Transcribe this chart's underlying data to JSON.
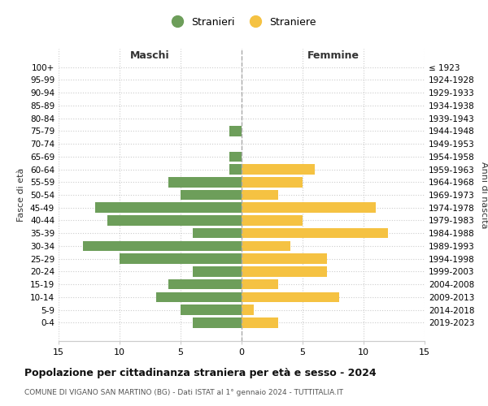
{
  "age_groups": [
    "100+",
    "95-99",
    "90-94",
    "85-89",
    "80-84",
    "75-79",
    "70-74",
    "65-69",
    "60-64",
    "55-59",
    "50-54",
    "45-49",
    "40-44",
    "35-39",
    "30-34",
    "25-29",
    "20-24",
    "15-19",
    "10-14",
    "5-9",
    "0-4"
  ],
  "birth_years": [
    "≤ 1923",
    "1924-1928",
    "1929-1933",
    "1934-1938",
    "1939-1943",
    "1944-1948",
    "1949-1953",
    "1954-1958",
    "1959-1963",
    "1964-1968",
    "1969-1973",
    "1974-1978",
    "1979-1983",
    "1984-1988",
    "1989-1993",
    "1994-1998",
    "1999-2003",
    "2004-2008",
    "2009-2013",
    "2014-2018",
    "2019-2023"
  ],
  "maschi": [
    0,
    0,
    0,
    0,
    0,
    1,
    0,
    1,
    1,
    6,
    5,
    12,
    11,
    4,
    13,
    10,
    4,
    6,
    7,
    5,
    4
  ],
  "femmine": [
    0,
    0,
    0,
    0,
    0,
    0,
    0,
    0,
    6,
    5,
    3,
    11,
    5,
    12,
    4,
    7,
    7,
    3,
    8,
    1,
    3
  ],
  "maschi_color": "#6d9e5a",
  "femmine_color": "#f5c242",
  "background_color": "#ffffff",
  "grid_color": "#cccccc",
  "title": "Popolazione per cittadinanza straniera per età e sesso - 2024",
  "subtitle": "COMUNE DI VIGANO SAN MARTINO (BG) - Dati ISTAT al 1° gennaio 2024 - TUTTITALIA.IT",
  "xlabel_left": "Maschi",
  "xlabel_right": "Femmine",
  "ylabel_left": "Fasce di età",
  "ylabel_right": "Anni di nascita",
  "legend_stranieri": "Stranieri",
  "legend_straniere": "Straniere",
  "xlim": 15
}
